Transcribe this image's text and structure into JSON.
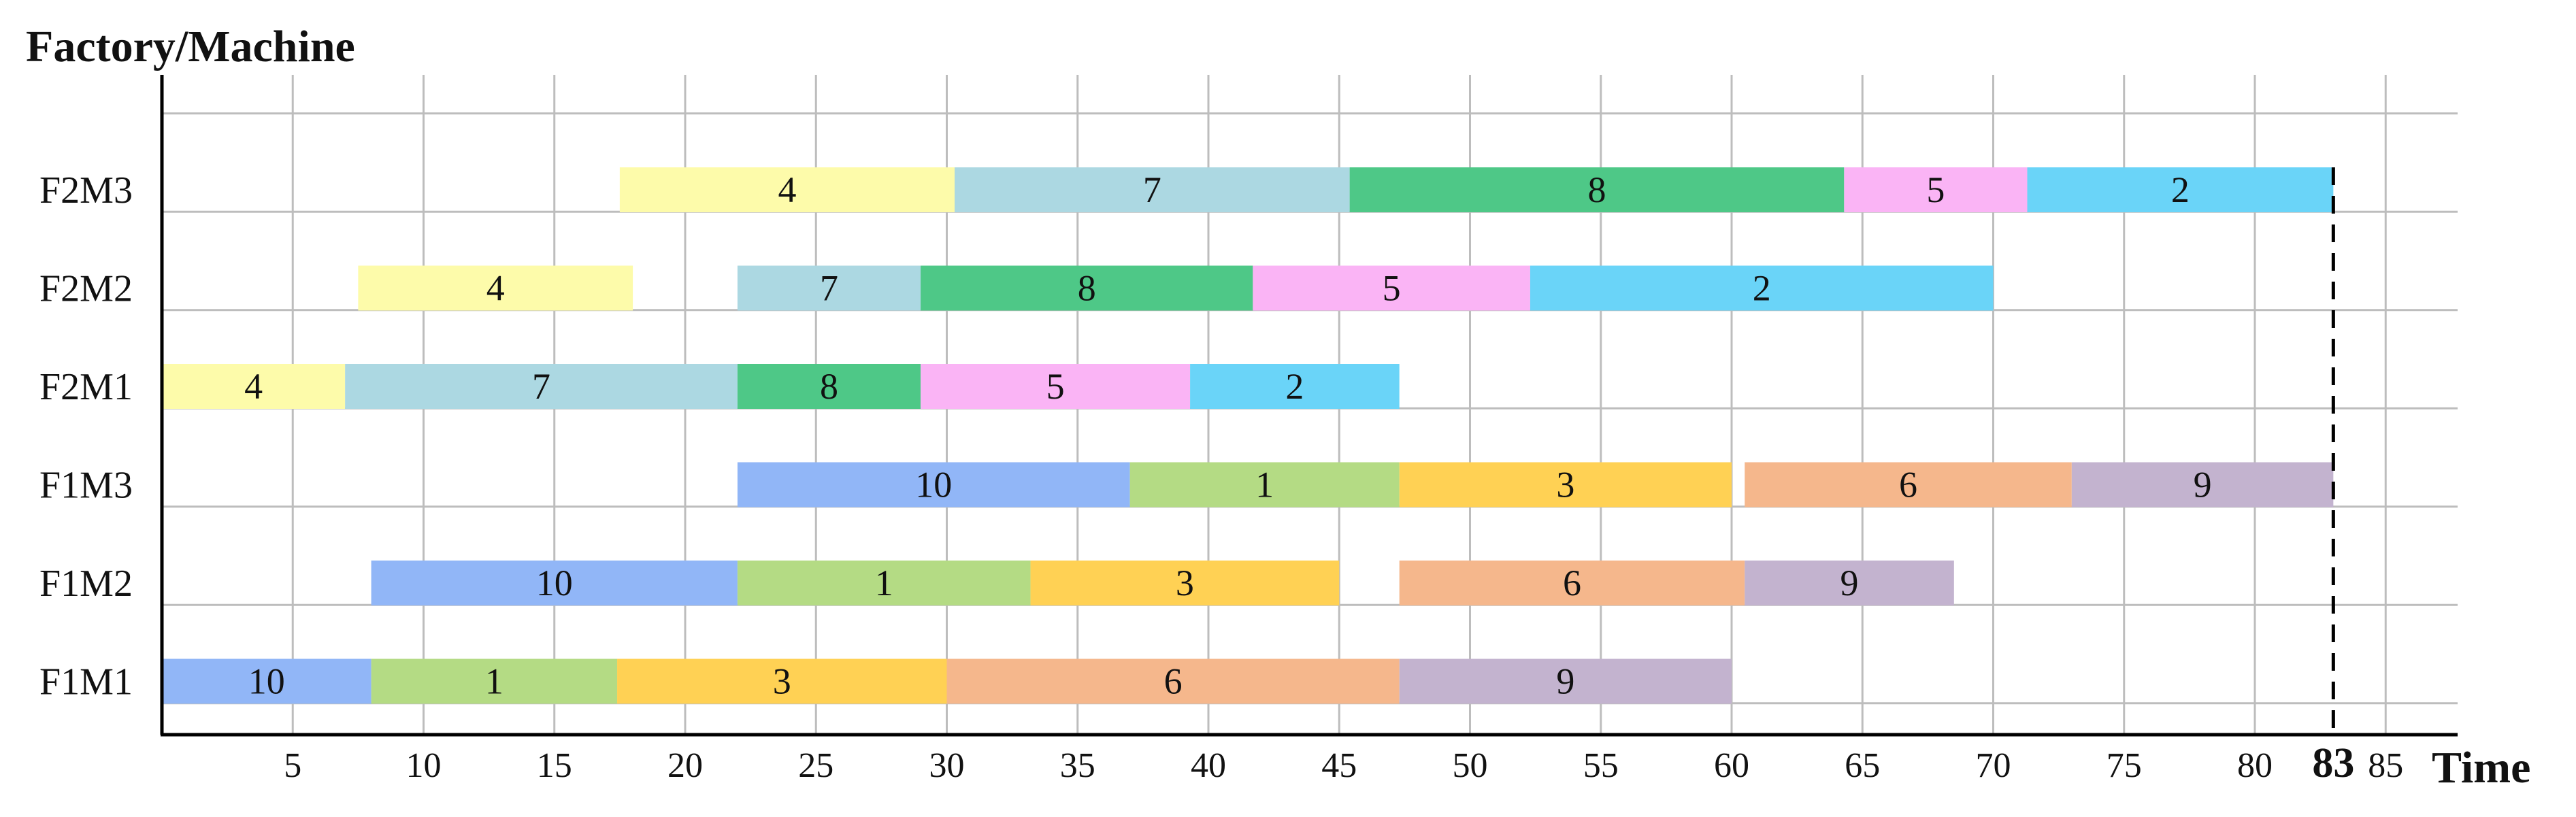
{
  "chart_data": {
    "type": "gantt",
    "ylabel": "Factory/Machine",
    "xlabel": "Time",
    "xlim": [
      0,
      87.5
    ],
    "xticks": [
      5,
      10,
      15,
      20,
      25,
      30,
      35,
      40,
      45,
      50,
      55,
      60,
      65,
      70,
      75,
      80,
      83,
      85
    ],
    "makespan": 83,
    "makespan_label": "83",
    "grid": true,
    "machines": [
      "F1M1",
      "F1M2",
      "F1M3",
      "F2M1",
      "F2M2",
      "F2M3"
    ],
    "job_colors": {
      "1": "#b4db84",
      "2": "#6ad4f8",
      "3": "#ffd154",
      "4": "#fdfbaa",
      "5": "#fab4f5",
      "6": "#f5b78c",
      "7": "#acd8e2",
      "8": "#4ec887",
      "9": "#c3b3cf",
      "10": "#91b6f7"
    },
    "operations": [
      {
        "machine": "F1M1",
        "job": "10",
        "start": 0,
        "end": 8
      },
      {
        "machine": "F1M1",
        "job": "1",
        "start": 8,
        "end": 17.4
      },
      {
        "machine": "F1M1",
        "job": "3",
        "start": 17.4,
        "end": 30
      },
      {
        "machine": "F1M1",
        "job": "6",
        "start": 30,
        "end": 47.3
      },
      {
        "machine": "F1M1",
        "job": "9",
        "start": 47.3,
        "end": 60
      },
      {
        "machine": "F1M2",
        "job": "10",
        "start": 8,
        "end": 22
      },
      {
        "machine": "F1M2",
        "job": "1",
        "start": 22,
        "end": 33.2
      },
      {
        "machine": "F1M2",
        "job": "3",
        "start": 33.2,
        "end": 45
      },
      {
        "machine": "F1M2",
        "job": "6",
        "start": 47.3,
        "end": 60.5
      },
      {
        "machine": "F1M2",
        "job": "9",
        "start": 60.5,
        "end": 68.5
      },
      {
        "machine": "F1M3",
        "job": "10",
        "start": 22,
        "end": 37
      },
      {
        "machine": "F1M3",
        "job": "1",
        "start": 37,
        "end": 47.3
      },
      {
        "machine": "F1M3",
        "job": "3",
        "start": 47.3,
        "end": 60
      },
      {
        "machine": "F1M3",
        "job": "6",
        "start": 60.5,
        "end": 73
      },
      {
        "machine": "F1M3",
        "job": "9",
        "start": 73,
        "end": 83
      },
      {
        "machine": "F2M1",
        "job": "4",
        "start": 0,
        "end": 7
      },
      {
        "machine": "F2M1",
        "job": "7",
        "start": 7,
        "end": 22
      },
      {
        "machine": "F2M1",
        "job": "8",
        "start": 22,
        "end": 29
      },
      {
        "machine": "F2M1",
        "job": "5",
        "start": 29,
        "end": 39.3
      },
      {
        "machine": "F2M1",
        "job": "2",
        "start": 39.3,
        "end": 47.3
      },
      {
        "machine": "F2M2",
        "job": "4",
        "start": 7.5,
        "end": 18
      },
      {
        "machine": "F2M2",
        "job": "7",
        "start": 22,
        "end": 29
      },
      {
        "machine": "F2M2",
        "job": "8",
        "start": 29,
        "end": 41.7
      },
      {
        "machine": "F2M2",
        "job": "5",
        "start": 41.7,
        "end": 52.3
      },
      {
        "machine": "F2M2",
        "job": "2",
        "start": 52.3,
        "end": 70
      },
      {
        "machine": "F2M3",
        "job": "4",
        "start": 17.5,
        "end": 30.3
      },
      {
        "machine": "F2M3",
        "job": "7",
        "start": 30.3,
        "end": 45.4
      },
      {
        "machine": "F2M3",
        "job": "8",
        "start": 45.4,
        "end": 64.3
      },
      {
        "machine": "F2M3",
        "job": "5",
        "start": 64.3,
        "end": 71.3
      },
      {
        "machine": "F2M3",
        "job": "2",
        "start": 71.3,
        "end": 83
      }
    ]
  }
}
